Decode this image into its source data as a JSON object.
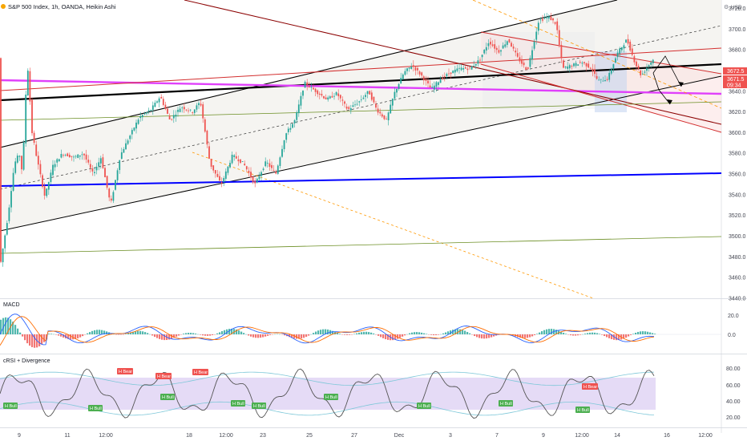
{
  "header": {
    "symbol_title": "S&P 500 Index, 1h, OANDA, Heikin Ashi",
    "currency": "USD"
  },
  "panes": {
    "macd": {
      "label": "MACD",
      "ticks": [
        "20.0",
        "0.0"
      ]
    },
    "crsi": {
      "label": "cRSI + Divergence",
      "ticks": [
        "80.00",
        "60.00",
        "40.00",
        "20.00"
      ]
    }
  },
  "price_tags": {
    "last": "3672.5",
    "current": "3671.5",
    "countdown": "09:34"
  },
  "markers": {
    "bull": "H Bull",
    "bear": "H Bear"
  },
  "colors": {
    "up": "#26a69a",
    "down": "#ef5350",
    "black_line": "#000000",
    "magenta": "#e040fb",
    "blue": "#0000ff",
    "red_line": "#d32f2f",
    "green_line": "#6b8e23",
    "orange": "#ff9800",
    "price_tag": "#ef5350",
    "band_fill": "#e1d5f5",
    "macd_line": "#2962ff",
    "signal_line": "#ff6d00"
  },
  "chart_data": {
    "type": "candlestick",
    "title": "S&P 500 Index, 1h, OANDA, Heikin Ashi",
    "x_ticks": [
      "9",
      "11",
      "12:00",
      "18",
      "12:00",
      "23",
      "25",
      "27",
      "Dec",
      "3",
      "7",
      "9",
      "12:00",
      "14",
      "16",
      "12:00"
    ],
    "y_ticks": [
      3720,
      3700,
      3680,
      3660,
      3640,
      3620,
      3600,
      3580,
      3560,
      3540,
      3520,
      3500,
      3480,
      3460,
      3440
    ],
    "ylim": [
      3440,
      3725
    ],
    "keypoints": [
      [
        0,
        3470
      ],
      [
        10,
        3520
      ],
      [
        18,
        3570
      ],
      [
        24,
        3580
      ],
      [
        28,
        3560
      ],
      [
        34,
        3670
      ],
      [
        40,
        3600
      ],
      [
        46,
        3575
      ],
      [
        56,
        3538
      ],
      [
        66,
        3568
      ],
      [
        78,
        3580
      ],
      [
        92,
        3576
      ],
      [
        104,
        3580
      ],
      [
        116,
        3560
      ],
      [
        126,
        3576
      ],
      [
        138,
        3530
      ],
      [
        150,
        3578
      ],
      [
        164,
        3600
      ],
      [
        174,
        3615
      ],
      [
        188,
        3622
      ],
      [
        200,
        3635
      ],
      [
        212,
        3612
      ],
      [
        226,
        3625
      ],
      [
        240,
        3620
      ],
      [
        250,
        3630
      ],
      [
        262,
        3570
      ],
      [
        276,
        3550
      ],
      [
        290,
        3578
      ],
      [
        304,
        3570
      ],
      [
        318,
        3550
      ],
      [
        332,
        3572
      ],
      [
        344,
        3560
      ],
      [
        356,
        3598
      ],
      [
        368,
        3612
      ],
      [
        380,
        3648
      ],
      [
        394,
        3640
      ],
      [
        408,
        3632
      ],
      [
        420,
        3638
      ],
      [
        434,
        3622
      ],
      [
        448,
        3630
      ],
      [
        460,
        3640
      ],
      [
        470,
        3622
      ],
      [
        482,
        3612
      ],
      [
        492,
        3638
      ],
      [
        504,
        3658
      ],
      [
        514,
        3665
      ],
      [
        526,
        3655
      ],
      [
        538,
        3642
      ],
      [
        550,
        3652
      ],
      [
        562,
        3658
      ],
      [
        574,
        3662
      ],
      [
        586,
        3662
      ],
      [
        598,
        3670
      ],
      [
        610,
        3688
      ],
      [
        622,
        3678
      ],
      [
        634,
        3690
      ],
      [
        646,
        3672
      ],
      [
        658,
        3660
      ],
      [
        672,
        3708
      ],
      [
        684,
        3712
      ],
      [
        694,
        3705
      ],
      [
        702,
        3662
      ],
      [
        714,
        3665
      ],
      [
        726,
        3668
      ],
      [
        738,
        3662
      ],
      [
        746,
        3650
      ],
      [
        758,
        3652
      ],
      [
        770,
        3676
      ],
      [
        782,
        3690
      ],
      [
        792,
        3668
      ],
      [
        800,
        3655
      ],
      [
        808,
        3664
      ],
      [
        816,
        3672
      ]
    ]
  }
}
